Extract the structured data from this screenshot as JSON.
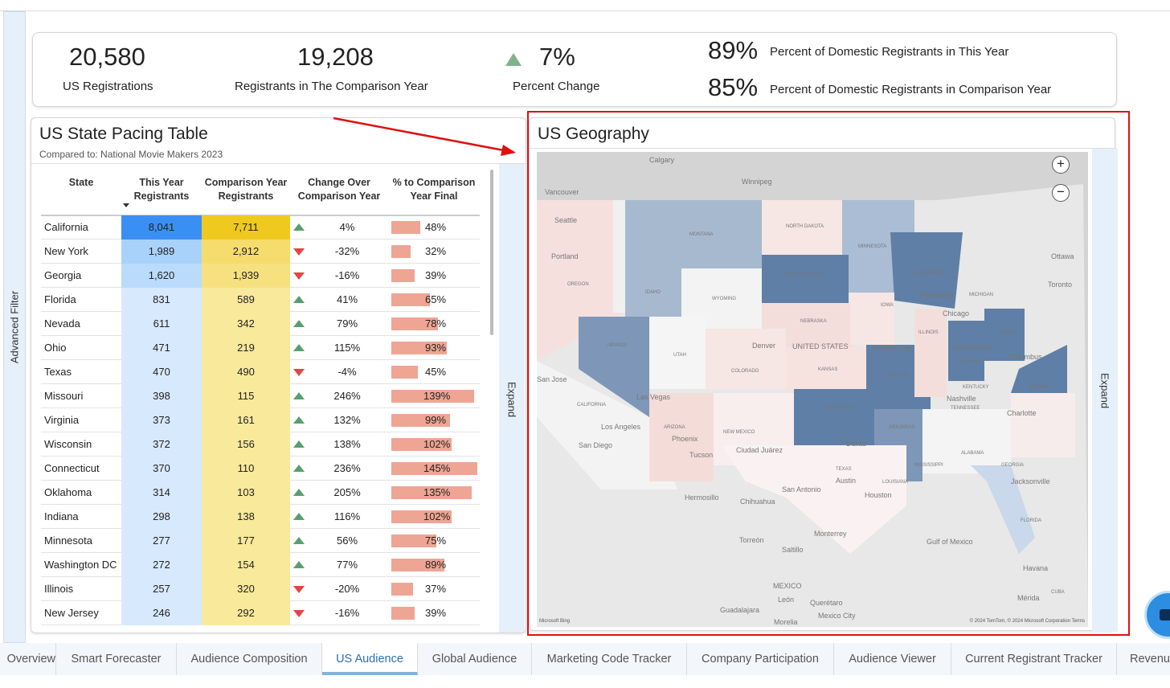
{
  "sidebar": {
    "advanced_filter": "Advanced Filter"
  },
  "kpis": {
    "us_registrations": {
      "value": "20,580",
      "label": "US Registrations"
    },
    "comparison_year": {
      "value": "19,208",
      "label": "Registrants in The Comparison Year"
    },
    "percent_change": {
      "value": "7%",
      "label": "Percent Change",
      "direction": "up"
    },
    "domestic_this_year": {
      "value": "89%",
      "label": "Percent of Domestic Registrants in This Year"
    },
    "domestic_comparison": {
      "value": "85%",
      "label": "Percent of Domestic Registrants in Comparison Year"
    }
  },
  "table": {
    "title": "US State Pacing Table",
    "subtitle": "Compared to: National Movie Makers 2023",
    "headers": [
      "State",
      "This Year Registrants",
      "Comparison Year Registrants",
      "Change Over Comparison Year",
      "% to Comparison Year Final"
    ],
    "expand_label": "Expand",
    "rows": [
      {
        "state": "California",
        "this_year": "8,041",
        "comparison": "7,711",
        "dir": "up",
        "change": "4%",
        "pct": "48%",
        "pct_value": 48
      },
      {
        "state": "New York",
        "this_year": "1,989",
        "comparison": "2,912",
        "dir": "down",
        "change": "-32%",
        "pct": "32%",
        "pct_value": 32
      },
      {
        "state": "Georgia",
        "this_year": "1,620",
        "comparison": "1,939",
        "dir": "down",
        "change": "-16%",
        "pct": "39%",
        "pct_value": 39
      },
      {
        "state": "Florida",
        "this_year": "831",
        "comparison": "589",
        "dir": "up",
        "change": "41%",
        "pct": "65%",
        "pct_value": 65
      },
      {
        "state": "Nevada",
        "this_year": "611",
        "comparison": "342",
        "dir": "up",
        "change": "79%",
        "pct": "78%",
        "pct_value": 78
      },
      {
        "state": "Ohio",
        "this_year": "471",
        "comparison": "219",
        "dir": "up",
        "change": "115%",
        "pct": "93%",
        "pct_value": 93
      },
      {
        "state": "Texas",
        "this_year": "470",
        "comparison": "490",
        "dir": "down",
        "change": "-4%",
        "pct": "45%",
        "pct_value": 45
      },
      {
        "state": "Missouri",
        "this_year": "398",
        "comparison": "115",
        "dir": "up",
        "change": "246%",
        "pct": "139%",
        "pct_value": 139
      },
      {
        "state": "Virginia",
        "this_year": "373",
        "comparison": "161",
        "dir": "up",
        "change": "132%",
        "pct": "99%",
        "pct_value": 99
      },
      {
        "state": "Wisconsin",
        "this_year": "372",
        "comparison": "156",
        "dir": "up",
        "change": "138%",
        "pct": "102%",
        "pct_value": 102
      },
      {
        "state": "Connecticut",
        "this_year": "370",
        "comparison": "110",
        "dir": "up",
        "change": "236%",
        "pct": "145%",
        "pct_value": 145
      },
      {
        "state": "Oklahoma",
        "this_year": "314",
        "comparison": "103",
        "dir": "up",
        "change": "205%",
        "pct": "135%",
        "pct_value": 135
      },
      {
        "state": "Indiana",
        "this_year": "298",
        "comparison": "138",
        "dir": "up",
        "change": "116%",
        "pct": "102%",
        "pct_value": 102
      },
      {
        "state": "Minnesota",
        "this_year": "277",
        "comparison": "177",
        "dir": "up",
        "change": "56%",
        "pct": "75%",
        "pct_value": 75
      },
      {
        "state": "Washington DC",
        "this_year": "272",
        "comparison": "154",
        "dir": "up",
        "change": "77%",
        "pct": "89%",
        "pct_value": 89
      },
      {
        "state": "Illinois",
        "this_year": "257",
        "comparison": "320",
        "dir": "down",
        "change": "-20%",
        "pct": "37%",
        "pct_value": 37
      },
      {
        "state": "New Jersey",
        "this_year": "246",
        "comparison": "292",
        "dir": "down",
        "change": "-16%",
        "pct": "39%",
        "pct_value": 39
      }
    ]
  },
  "map": {
    "title": "US Geography",
    "expand_label": "Expand",
    "zoom_in": "+",
    "zoom_out": "−",
    "labels": [
      "Calgary",
      "Winnipeg",
      "Vancouver",
      "Seattle",
      "Portland",
      "MONTANA",
      "NORTH DAKOTA",
      "MINNESOTA",
      "OREGON",
      "IDAHO",
      "WYOMING",
      "SOUTH DAKOTA",
      "WISCONSIN",
      "Milwaukee",
      "Ottawa",
      "Toronto",
      "NEBRASKA",
      "IOWA",
      "Chicago",
      "MICHIGAN",
      "NEVADA",
      "UTAH",
      "Denver",
      "UNITED STATES",
      "Kansas City",
      "ILLINOIS",
      "INDIANA",
      "OHIO",
      "Indianapolis",
      "Columbus",
      "San Jose",
      "COLORADO",
      "KANSAS",
      "MISSOURI",
      "KENTUCKY",
      "VIRGINIA",
      "Las Vegas",
      "CALIFORNIA",
      "Nashville",
      "TENNESSEE",
      "Los Angeles",
      "ARIZONA",
      "NEW MEXICO",
      "OKLAHOMA",
      "ARKANSAS",
      "Charlotte",
      "San Diego",
      "Phoenix",
      "Tucson",
      "Dallas",
      "Ciudad Juárez",
      "ALABAMA",
      "GEORGIA",
      "TEXAS",
      "Austin",
      "San Antonio",
      "LOUISIANA",
      "MISSISSIPPI",
      "Houston",
      "Jacksonville",
      "Hermosillo",
      "Chihuahua",
      "FLORIDA",
      "Monterrey",
      "Torreón",
      "Saltillo",
      "Gulf of Mexico",
      "Havana",
      "MEXICO",
      "Guadalajara",
      "León",
      "Querétaro",
      "Mexico City",
      "Mérida",
      "CUBA",
      "Morelia"
    ],
    "attribution_left": "Microsoft Bing",
    "attribution_right": "© 2024 TomTom, © 2024 Microsoft Corporation Terms"
  },
  "tabs": [
    "Overview",
    "Smart Forecaster",
    "Audience Composition",
    "US Audience",
    "Global Audience",
    "Marketing Code Tracker",
    "Company Participation",
    "Audience Viewer",
    "Current Registrant Tracker",
    "Revenue"
  ],
  "active_tab": "US Audience",
  "colors": {
    "up": "#5a9e6f",
    "down": "#e04646",
    "bar": "#eea593",
    "highlight": "#e01010"
  }
}
